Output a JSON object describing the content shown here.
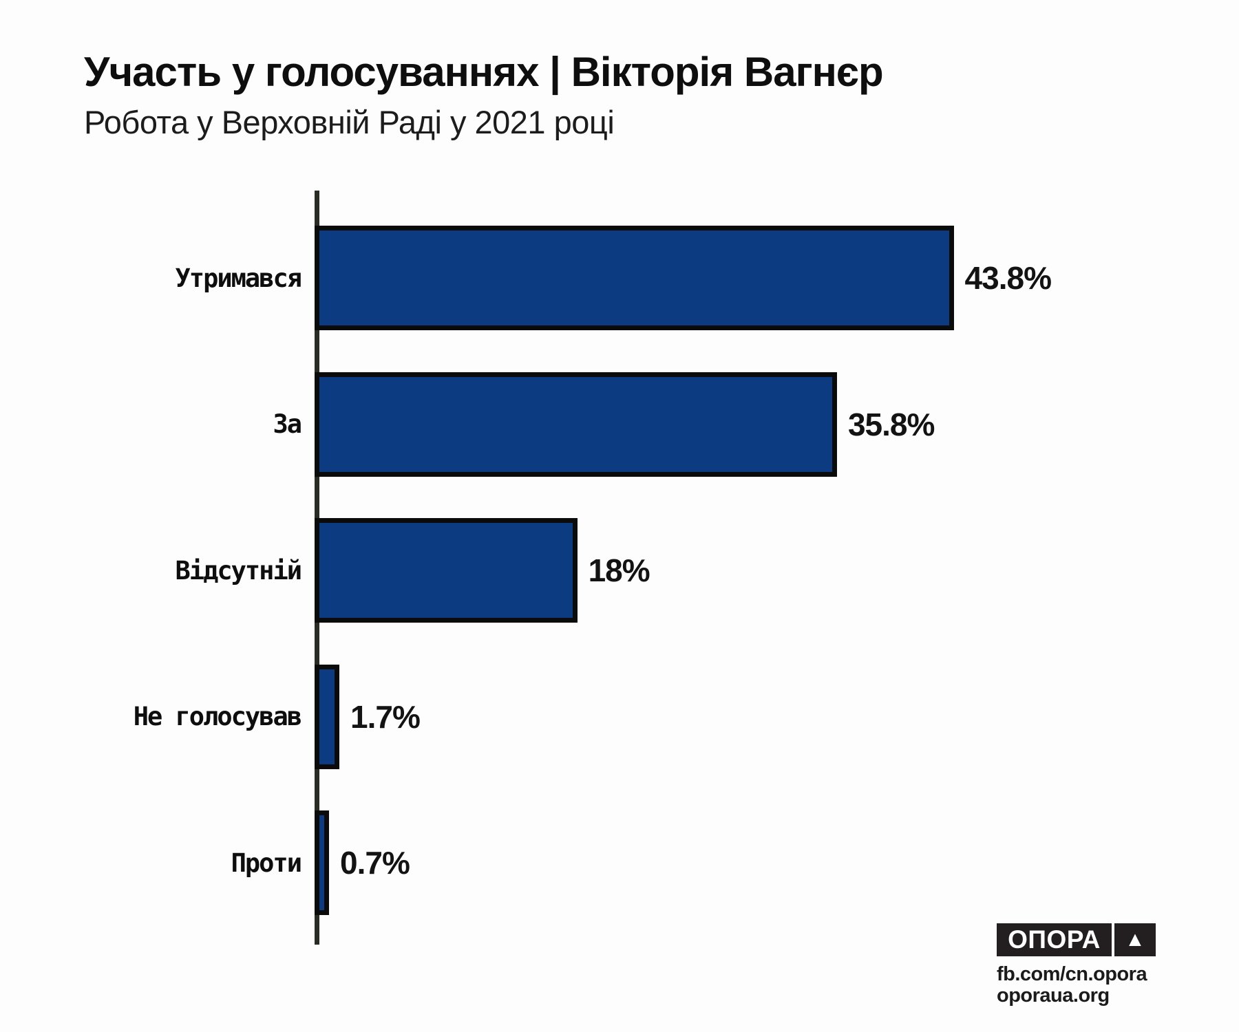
{
  "header": {
    "title": "Участь у голосуваннях | Вікторія Вагнєр",
    "subtitle": "Робота у Верховній Раді у 2021 році"
  },
  "chart_data": {
    "type": "bar",
    "orientation": "horizontal",
    "title": "Участь у голосуваннях | Вікторія Вагнєр",
    "subtitle": "Робота у Верховній Раді у 2021 році",
    "categories": [
      "Утримався",
      "За",
      "Відсутній",
      "Не голосував",
      "Проти"
    ],
    "values": [
      43.8,
      35.8,
      18,
      1.7,
      0.7
    ],
    "value_labels": [
      "43.8%",
      "35.8%",
      "18%",
      "1.7%",
      "0.7%"
    ],
    "unit": "%",
    "xlim": [
      0,
      45
    ],
    "grid": false,
    "legend": false,
    "bar_color": "#0c3b82",
    "bar_border_color": "#0b0b0b",
    "axis_color": "#282c23"
  },
  "footer": {
    "logo_text": "ОПОРА",
    "logo_triangle": "▲",
    "fb_url": "fb.com/cn.opora",
    "site_url": "oporaua.org"
  }
}
